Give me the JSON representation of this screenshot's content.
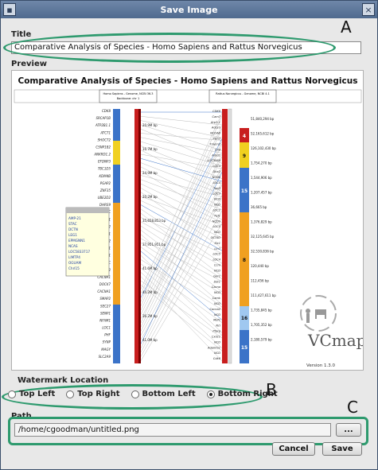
{
  "window": {
    "title": "Save Image"
  },
  "title_section": {
    "label": "Title",
    "value": "Comparative Analysis of Species - Homo Sapiens and Rattus Norvegicus"
  },
  "preview": {
    "label": "Preview",
    "heading": "Comparative Analysis of Species - Homo Sapiens and Rattus Norvegicus",
    "left_header": "Homo Sapiens - Genome, NCBI 36.3",
    "left_subheader": "Backbone: chr 1",
    "right_header": "Rattus Norvegicus - Genome, NCBI 4.1",
    "left_genes": [
      "CDK8",
      "SRCAP1B",
      "ATP2B1.1",
      "ATCT1",
      "SHOCT2",
      "CSNP1B2",
      "ANKRD1.2",
      "EFDNP3",
      "TBC1D5",
      "KDM4B",
      "PGAP2",
      "ZNF35",
      "UBE2D2",
      "DHRS9",
      "TMC",
      "NCAI1",
      "ZCMAP2",
      "IGF1",
      "UAP1D2",
      "TRMT1",
      "TRIT1",
      "TOP1C",
      "NFM1P2",
      "CACNA1",
      "DOCK7",
      "CACNA1",
      "SMAP2",
      "SEC27",
      "SENP1",
      "NFAM1",
      "LOC1",
      "PHF",
      "SYNP",
      "MAGY",
      "SLC2A9"
    ],
    "right_genes": [
      "CDK8",
      "Cam7",
      "Arp3-1",
      "Adcy3",
      "NCDAB",
      "Ptm3",
      "Tmem2",
      "Chd",
      "Arbd2",
      "LOC3069",
      "LOC4",
      "Dbx2",
      "NCDS",
      "LOC4",
      "Tpp3",
      "LOC3",
      "NCD",
      "NCD",
      "LOC2",
      "Tqf1",
      "NCDS",
      "LOC5",
      "NCD",
      "OCTAD",
      "Slc1",
      "Lin7",
      "LOC5",
      "LOC4",
      "Ccm",
      "NCD",
      "Ger1",
      "Dst1",
      "Cacna",
      "NCD",
      "Camk",
      "NCD",
      "Cacna2",
      "NCD",
      "Mef1",
      "Ncl",
      "Ptprg",
      "Cxdc1",
      "NCD",
      "Adamts1",
      "NCD",
      "Cdk8"
    ],
    "distance_labels": [
      "20.9M bp",
      "16.7M bp",
      "24.9M bp",
      "20.2M bp",
      "35,658,853 bp",
      "37,951,951 bp",
      "41.6M bp",
      "40.2M bp",
      "36.2M bp",
      "41.0M bp"
    ],
    "right_positions": [
      "51,840,294 bp",
      "52,165,612 bp",
      "126,102,430 bp",
      "1,754,270 bp",
      "1,544,906 bp",
      "1,207,457 bp",
      "36,665 bp",
      "1,376,829 bp",
      "32,125,645 bp",
      "32,530,836 bp",
      "120,440 bp",
      "112,456 bp",
      "111,427,611 bp",
      "1,735,845 bp",
      "1,705,352 bp",
      "2,180,579 bp"
    ],
    "chromosomes": [
      "4",
      "9",
      "15",
      "8",
      "16",
      "15"
    ],
    "legend_items": [
      "AMP-21",
      "STAC",
      "DCTN",
      "LEG1",
      "EPMGNN1",
      "NCAS",
      "LOC5833717",
      "LIMTP4",
      "OGUAM",
      "Chrl15"
    ],
    "version": "Version 1.3.0",
    "logo_text": "VCmap"
  },
  "watermark": {
    "label": "Watermark Location",
    "options": [
      "Top Left",
      "Top Right",
      "Bottom Left",
      "Bottom Right"
    ],
    "selected": "Bottom Right"
  },
  "path_section": {
    "label": "Path",
    "value": "/home/cgoodman/untitled.png",
    "browse_label": "..."
  },
  "buttons": {
    "cancel": "Cancel",
    "save": "Save"
  },
  "callouts": {
    "a": "A",
    "b": "B",
    "c": "C"
  },
  "colors": {
    "annotation": "#2e9a6e",
    "chr_orange": "#f0a020",
    "chr_blue": "#3b73c8",
    "chr_red": "#c81e1e",
    "chr_yellow": "#f0d020"
  }
}
